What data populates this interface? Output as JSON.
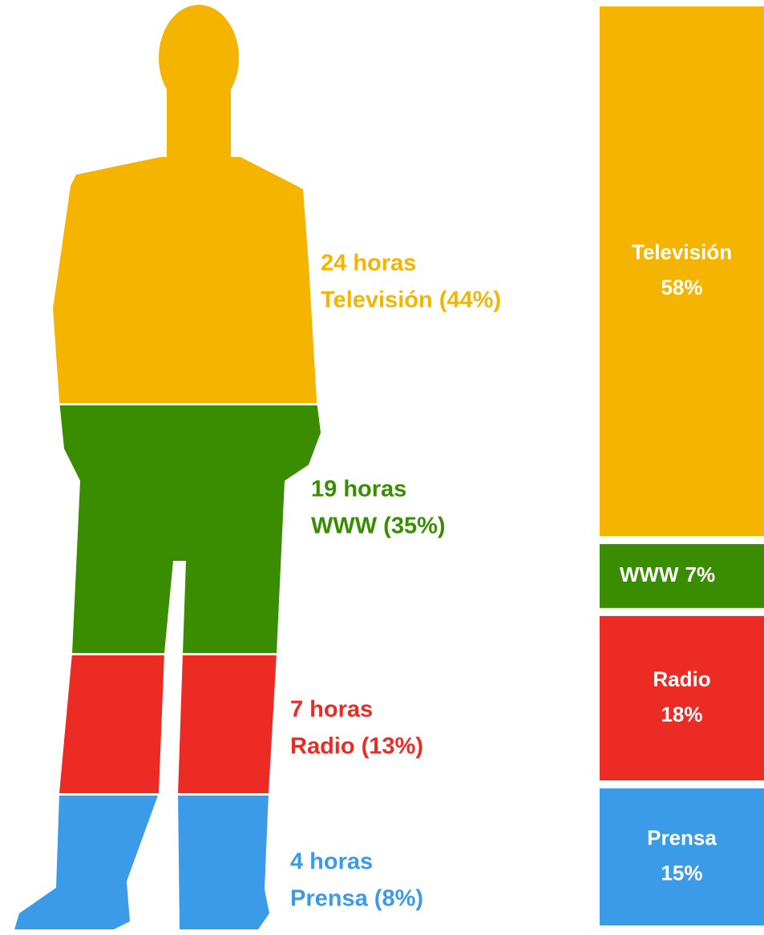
{
  "chart_data": [
    {
      "type": "pictogram",
      "categories": [
        "Televisión (44%)",
        "WWW (35%)",
        "Radio (13%)",
        "Prensa (8%)"
      ],
      "values": [
        24,
        19,
        7,
        4
      ],
      "value_labels": [
        "24 horas",
        "19 horas",
        "7 horas",
        "4 horas"
      ],
      "colors": [
        "#f5b400",
        "#3a8c00",
        "#ec2b24",
        "#3c9be8"
      ]
    },
    {
      "type": "stacked-bar",
      "categories": [
        "Televisión",
        "WWW",
        "Radio",
        "Prensa"
      ],
      "values": [
        58,
        7,
        18,
        15
      ],
      "value_labels": [
        "58%",
        "7%",
        "18%",
        "15%"
      ],
      "colors": [
        "#f5b400",
        "#3a8c00",
        "#ec2b24",
        "#3c9be8"
      ]
    }
  ]
}
